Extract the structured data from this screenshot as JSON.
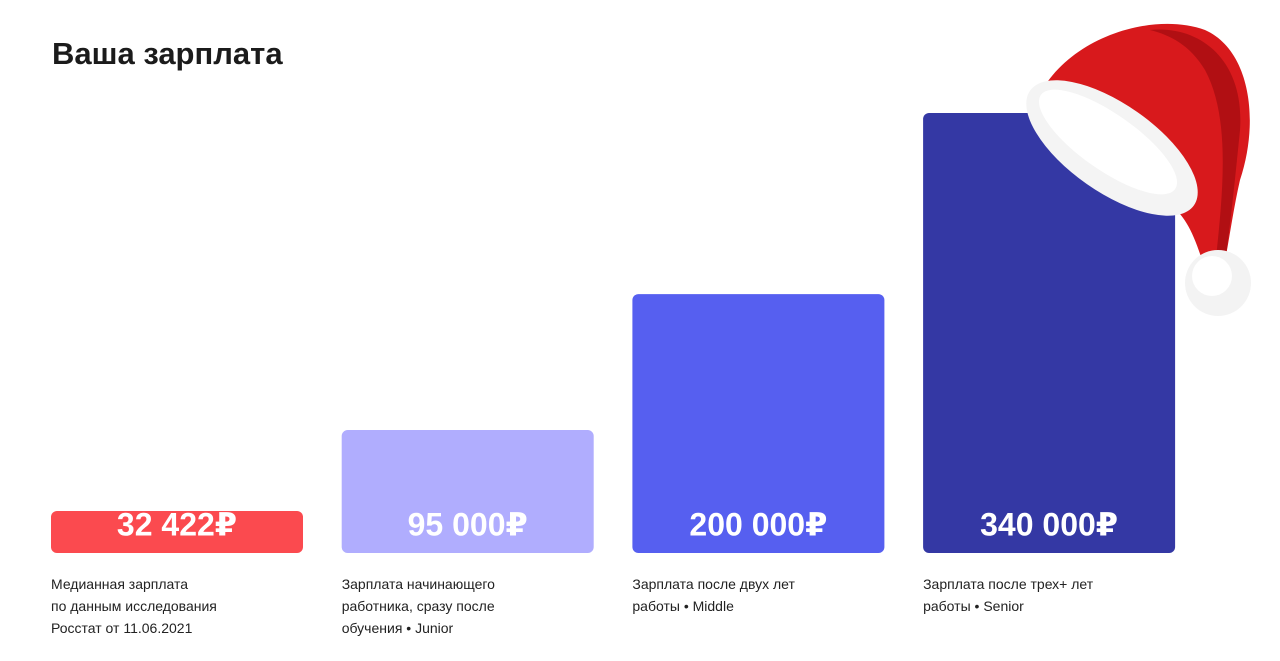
{
  "chart_data": {
    "type": "bar",
    "title": "Ваша зарплата",
    "categories": [
      "Медианная зарплата\nпо данным исследования\nРосстат от 11.06.2021",
      "Зарплата начинающего\nработника, сразу после\nобучения • Junior",
      "Зарплата после двух лет\nработы • Middle",
      "Зарплата после трех+ лет\nработы • Senior"
    ],
    "values": [
      32422,
      95000,
      200000,
      340000
    ],
    "value_labels": [
      "32 422₽",
      "95 000₽",
      "200 000₽",
      "340 000₽"
    ],
    "colors": [
      "#fb4a4f",
      "#b0adfe",
      "#565ff0",
      "#3438a4"
    ]
  }
}
